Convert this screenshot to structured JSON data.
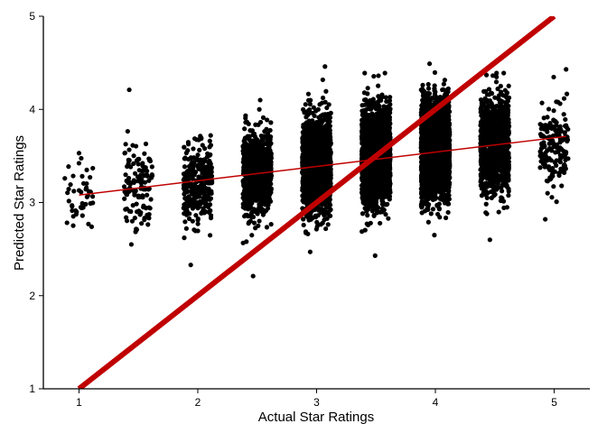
{
  "chart_data": {
    "type": "scatter",
    "title": "",
    "xlabel": "Actual Star Ratings",
    "ylabel": "Predicted Star Ratings",
    "xlim": [
      0.7,
      5.3
    ],
    "ylim": [
      1,
      5
    ],
    "x_ticks": [
      1,
      2,
      3,
      4,
      5
    ],
    "y_ticks": [
      1,
      2,
      3,
      4,
      5
    ],
    "x_tick_labels": [
      "1",
      "2",
      "3",
      "4",
      "5"
    ],
    "y_tick_labels": [
      "1",
      "2",
      "3",
      "4",
      "5"
    ],
    "grid": false,
    "legend": "none",
    "points_description": "jittered scatter of predicted vs actual ratings grouped at each half-star",
    "groups": [
      {
        "x": 1.0,
        "n": 45,
        "mean": 3.08,
        "sd": 0.18,
        "min": 2.74,
        "max": 3.53
      },
      {
        "x": 1.5,
        "n": 130,
        "mean": 3.18,
        "sd": 0.22,
        "min": 2.55,
        "max": 4.21
      },
      {
        "x": 2.0,
        "n": 320,
        "mean": 3.22,
        "sd": 0.22,
        "min": 2.33,
        "max": 3.72
      },
      {
        "x": 2.5,
        "n": 900,
        "mean": 3.31,
        "sd": 0.22,
        "min": 2.21,
        "max": 4.1
      },
      {
        "x": 3.0,
        "n": 1800,
        "mean": 3.4,
        "sd": 0.24,
        "min": 2.47,
        "max": 4.46
      },
      {
        "x": 3.5,
        "n": 2600,
        "mean": 3.5,
        "sd": 0.24,
        "min": 2.43,
        "max": 4.39
      },
      {
        "x": 4.0,
        "n": 2600,
        "mean": 3.57,
        "sd": 0.25,
        "min": 2.65,
        "max": 4.49
      },
      {
        "x": 4.5,
        "n": 1100,
        "mean": 3.62,
        "sd": 0.24,
        "min": 2.6,
        "max": 4.39
      },
      {
        "x": 5.0,
        "n": 170,
        "mean": 3.62,
        "sd": 0.22,
        "min": 2.82,
        "max": 4.43
      }
    ],
    "jitter_width": 0.12,
    "fit_line": {
      "x": [
        1,
        5.1
      ],
      "y": [
        3.08,
        3.71
      ],
      "color": "#c00000"
    },
    "identity_line": {
      "x": [
        1,
        5
      ],
      "y": [
        1,
        5
      ],
      "color": "#c00000"
    },
    "point_color": "#000000"
  }
}
